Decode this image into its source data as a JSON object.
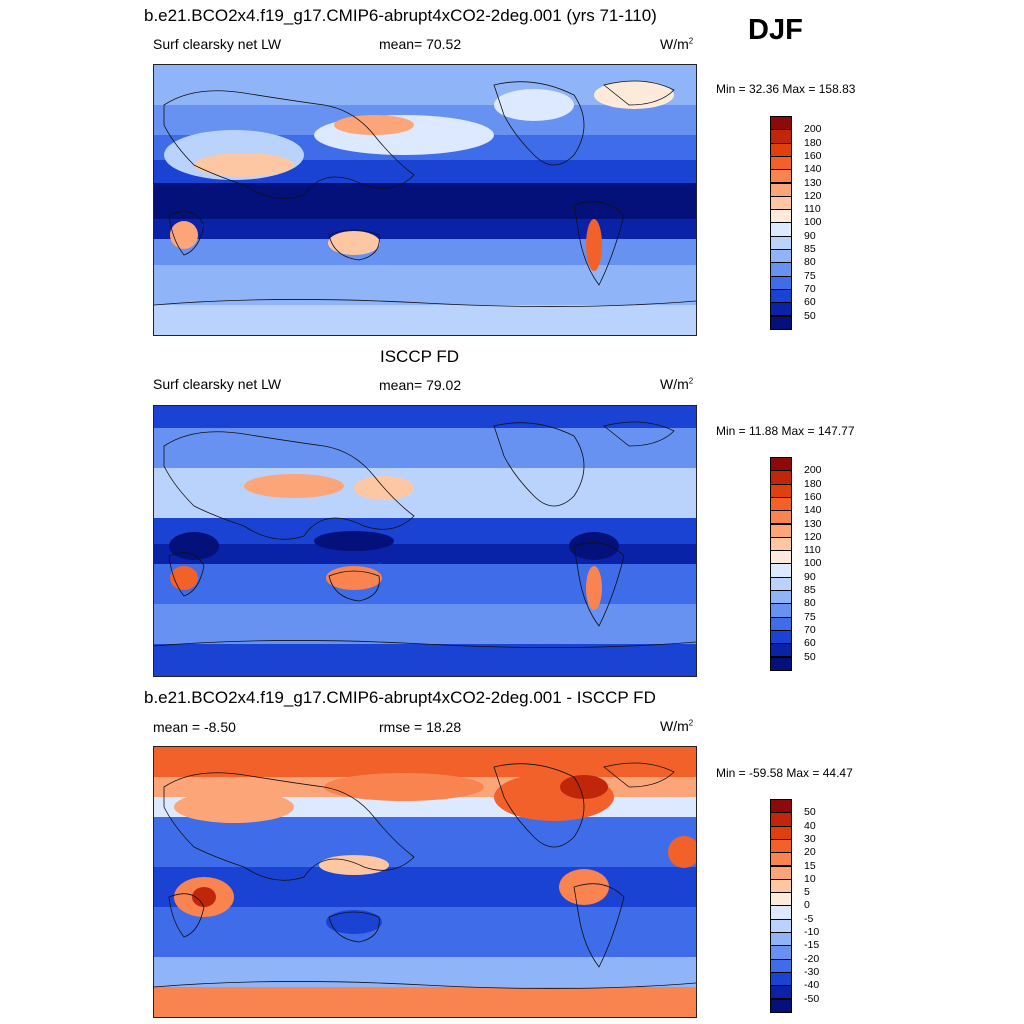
{
  "season": "DJF",
  "panels": [
    {
      "title": "b.e21.BCO2x4.f19_g17.CMIP6-abrupt4xCO2-2deg.001 (yrs 71-110)",
      "left_label": "Surf clearsky net LW",
      "center_label": "mean=  70.52",
      "units": "W/m",
      "units_exp": "2",
      "minmax": "Min =  32.36 Max = 158.83",
      "colorbar": {
        "labels": [
          "200",
          "180",
          "160",
          "140",
          "130",
          "120",
          "110",
          "100",
          "90",
          "85",
          "80",
          "75",
          "70",
          "60",
          "50"
        ],
        "colors": [
          "#8c0a0a",
          "#c0260a",
          "#e0400e",
          "#f2612a",
          "#f98450",
          "#fca579",
          "#fdc7a4",
          "#feeadb",
          "#dce9fe",
          "#b9d3fd",
          "#8fb4f8",
          "#6792f1",
          "#3f6ce8",
          "#1a43d4",
          "#0a22a8",
          "#04117a"
        ]
      }
    },
    {
      "title": "ISCCP FD",
      "left_label": "Surf clearsky net LW",
      "center_label": "mean=  79.02",
      "units": "W/m",
      "units_exp": "2",
      "minmax": "Min =  11.88 Max = 147.77",
      "colorbar": {
        "labels": [
          "200",
          "180",
          "160",
          "140",
          "130",
          "120",
          "110",
          "100",
          "90",
          "85",
          "80",
          "75",
          "70",
          "60",
          "50"
        ],
        "colors": [
          "#8c0a0a",
          "#c0260a",
          "#e0400e",
          "#f2612a",
          "#f98450",
          "#fca579",
          "#fdc7a4",
          "#feeadb",
          "#dce9fe",
          "#b9d3fd",
          "#8fb4f8",
          "#6792f1",
          "#3f6ce8",
          "#1a43d4",
          "#0a22a8",
          "#04117a"
        ]
      }
    },
    {
      "title": "b.e21.BCO2x4.f19_g17.CMIP6-abrupt4xCO2-2deg.001 - ISCCP FD",
      "left_label": "mean =  -8.50",
      "center_label": "rmse =  18.28",
      "units": "W/m",
      "units_exp": "2",
      "minmax": "Min = -59.58 Max =  44.47",
      "colorbar": {
        "labels": [
          "50",
          "40",
          "30",
          "20",
          "15",
          "10",
          "5",
          "0",
          "-5",
          "-10",
          "-15",
          "-20",
          "-30",
          "-40",
          "-50"
        ],
        "colors": [
          "#8c0a0a",
          "#c0260a",
          "#e0400e",
          "#f2612a",
          "#f98450",
          "#fca579",
          "#fdc7a4",
          "#feeadb",
          "#dce9fe",
          "#b9d3fd",
          "#8fb4f8",
          "#6792f1",
          "#3f6ce8",
          "#1a43d4",
          "#0a22a8",
          "#04117a"
        ]
      }
    }
  ]
}
